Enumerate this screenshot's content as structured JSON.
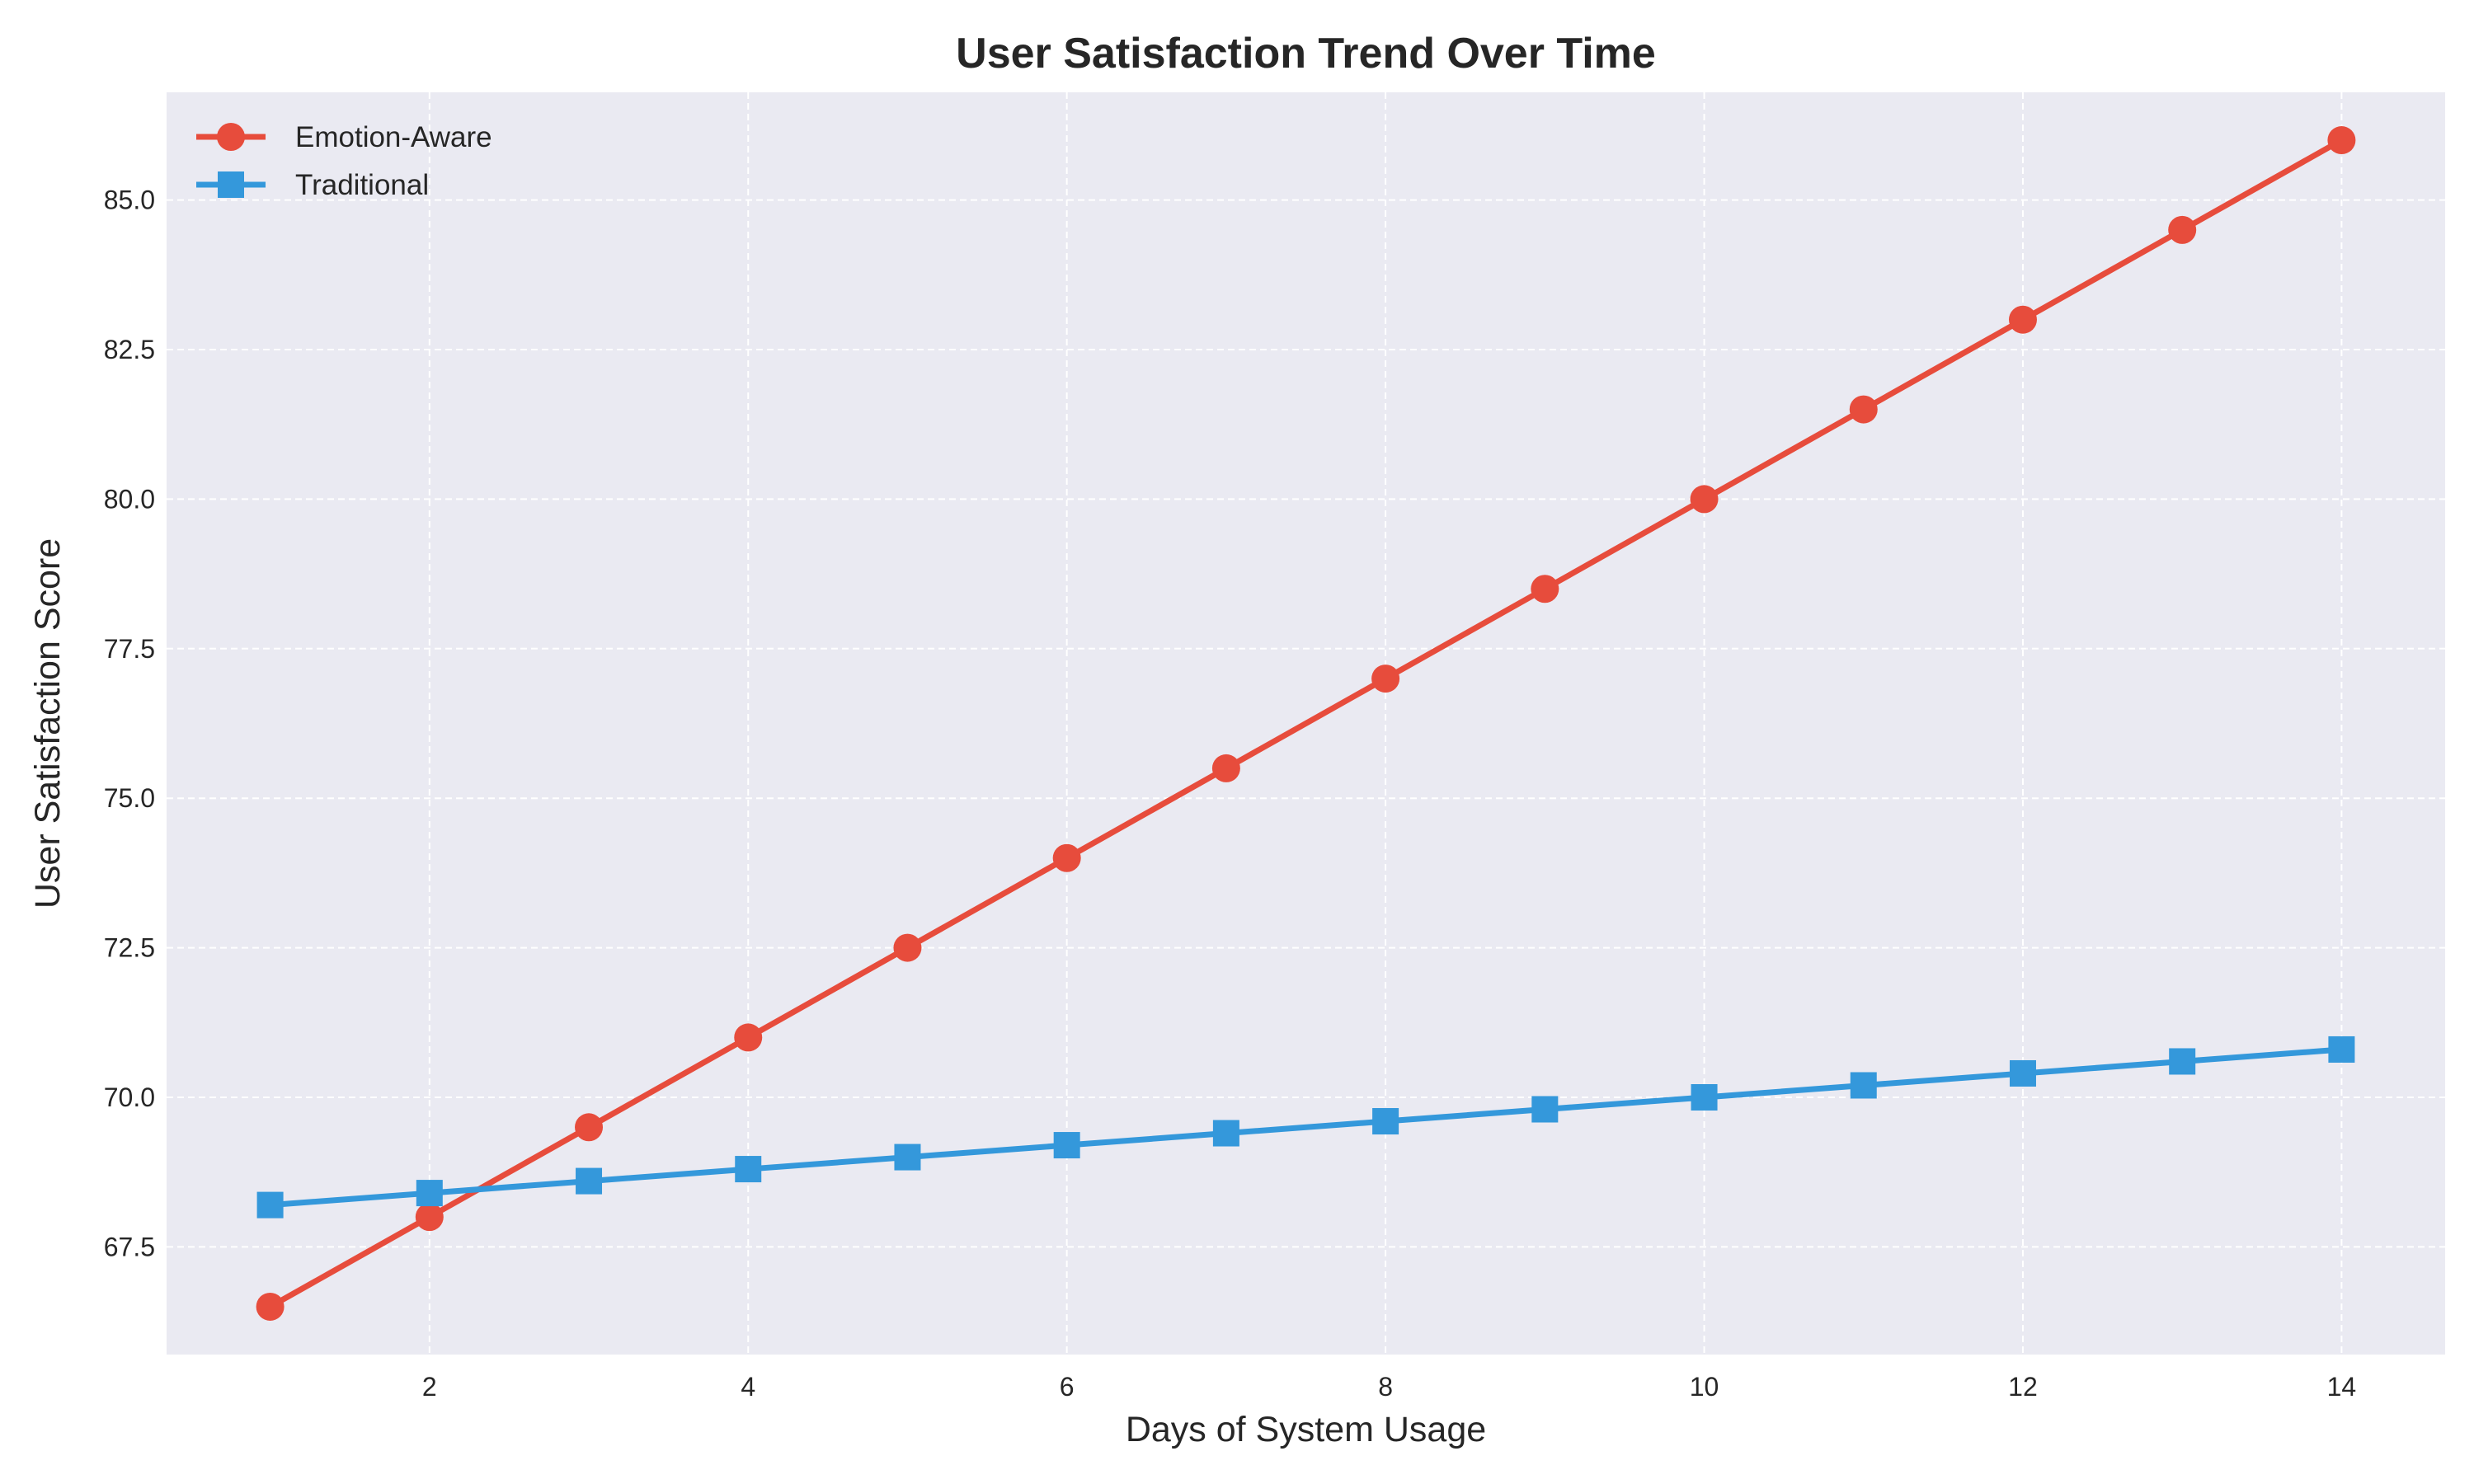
{
  "chart_data": {
    "type": "line",
    "title": "User Satisfaction Trend Over Time",
    "xlabel": "Days of System Usage",
    "ylabel": "User Satisfaction Score",
    "x": [
      1,
      2,
      3,
      4,
      5,
      6,
      7,
      8,
      9,
      10,
      11,
      12,
      13,
      14
    ],
    "xlim": [
      0.35,
      14.65
    ],
    "ylim": [
      65.7,
      86.8
    ],
    "xticks": [
      2,
      4,
      6,
      8,
      10,
      12,
      14
    ],
    "xtick_labels": [
      "2",
      "4",
      "6",
      "8",
      "10",
      "12",
      "14"
    ],
    "yticks": [
      67.5,
      70.0,
      72.5,
      75.0,
      77.5,
      80.0,
      82.5,
      85.0
    ],
    "ytick_labels": [
      "67.5",
      "70.0",
      "72.5",
      "75.0",
      "77.5",
      "80.0",
      "82.5",
      "85.0"
    ],
    "grid": true,
    "legend_position": "top-left",
    "background_color": "#eaeaf2",
    "series": [
      {
        "name": "Emotion-Aware",
        "color": "#e74c3c",
        "marker": "circle",
        "values": [
          66.5,
          68.0,
          69.5,
          71.0,
          72.5,
          74.0,
          75.5,
          77.0,
          78.5,
          80.0,
          81.5,
          83.0,
          84.5,
          86.0
        ]
      },
      {
        "name": "Traditional",
        "color": "#3498db",
        "marker": "square",
        "values": [
          68.2,
          68.4,
          68.6,
          68.8,
          69.0,
          69.2,
          69.4,
          69.6,
          69.8,
          70.0,
          70.2,
          70.4,
          70.6,
          70.8
        ]
      }
    ]
  }
}
